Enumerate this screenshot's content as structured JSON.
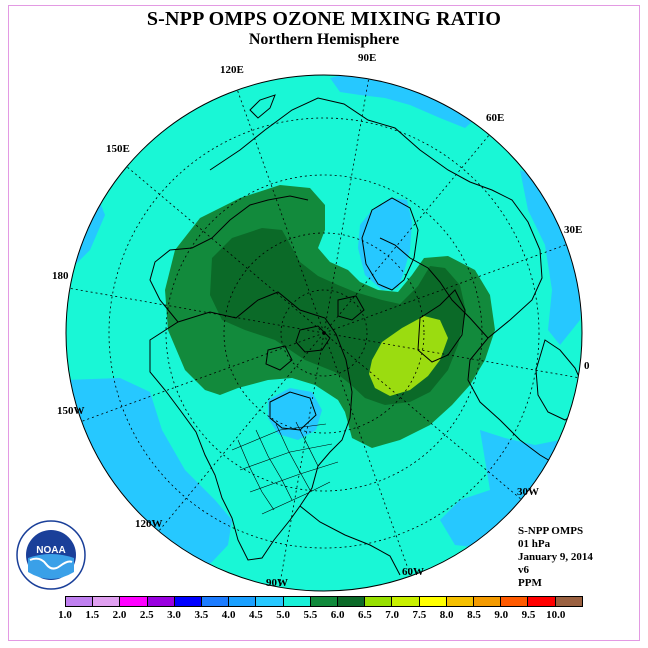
{
  "title": "S-NPP OMPS OZONE MIXING RATIO",
  "subtitle": "Northern Hemisphere",
  "longitude_labels": [
    "90E",
    "60E",
    "30E",
    "0",
    "30W",
    "60W",
    "90W",
    "120W",
    "150W",
    "180",
    "150E",
    "120E"
  ],
  "info": {
    "instrument": "S-NPP OMPS",
    "level": "01 hPa",
    "date": "January 9, 2014",
    "version": "v6",
    "units": "PPM"
  },
  "logo_text": "NOAA",
  "colorbar": {
    "ticks": [
      "1.0",
      "1.5",
      "2.0",
      "2.5",
      "3.0",
      "3.5",
      "4.0",
      "4.5",
      "5.0",
      "5.5",
      "6.0",
      "6.5",
      "7.0",
      "7.5",
      "8.0",
      "8.5",
      "9.0",
      "9.5",
      "10.0"
    ],
    "colors": [
      "#c080f0",
      "#e0a0f0",
      "#ff00ff",
      "#9a00e0",
      "#0000ff",
      "#1c7cff",
      "#1aa0ff",
      "#26c8ff",
      "#19f0d8",
      "#118a3c",
      "#0b6a28",
      "#97e000",
      "#c8f000",
      "#ffff00",
      "#f5c000",
      "#f39a00",
      "#ff5a00",
      "#ff0000",
      "#9a6040"
    ]
  },
  "map_colors": {
    "ocean_fill": "#19f7d6",
    "level_4_0": "#26c8ff",
    "level_5_0": "#128a3c",
    "level_5_5": "#0b6a28",
    "level_6_0": "#9bdc10",
    "coast": "#000000"
  }
}
